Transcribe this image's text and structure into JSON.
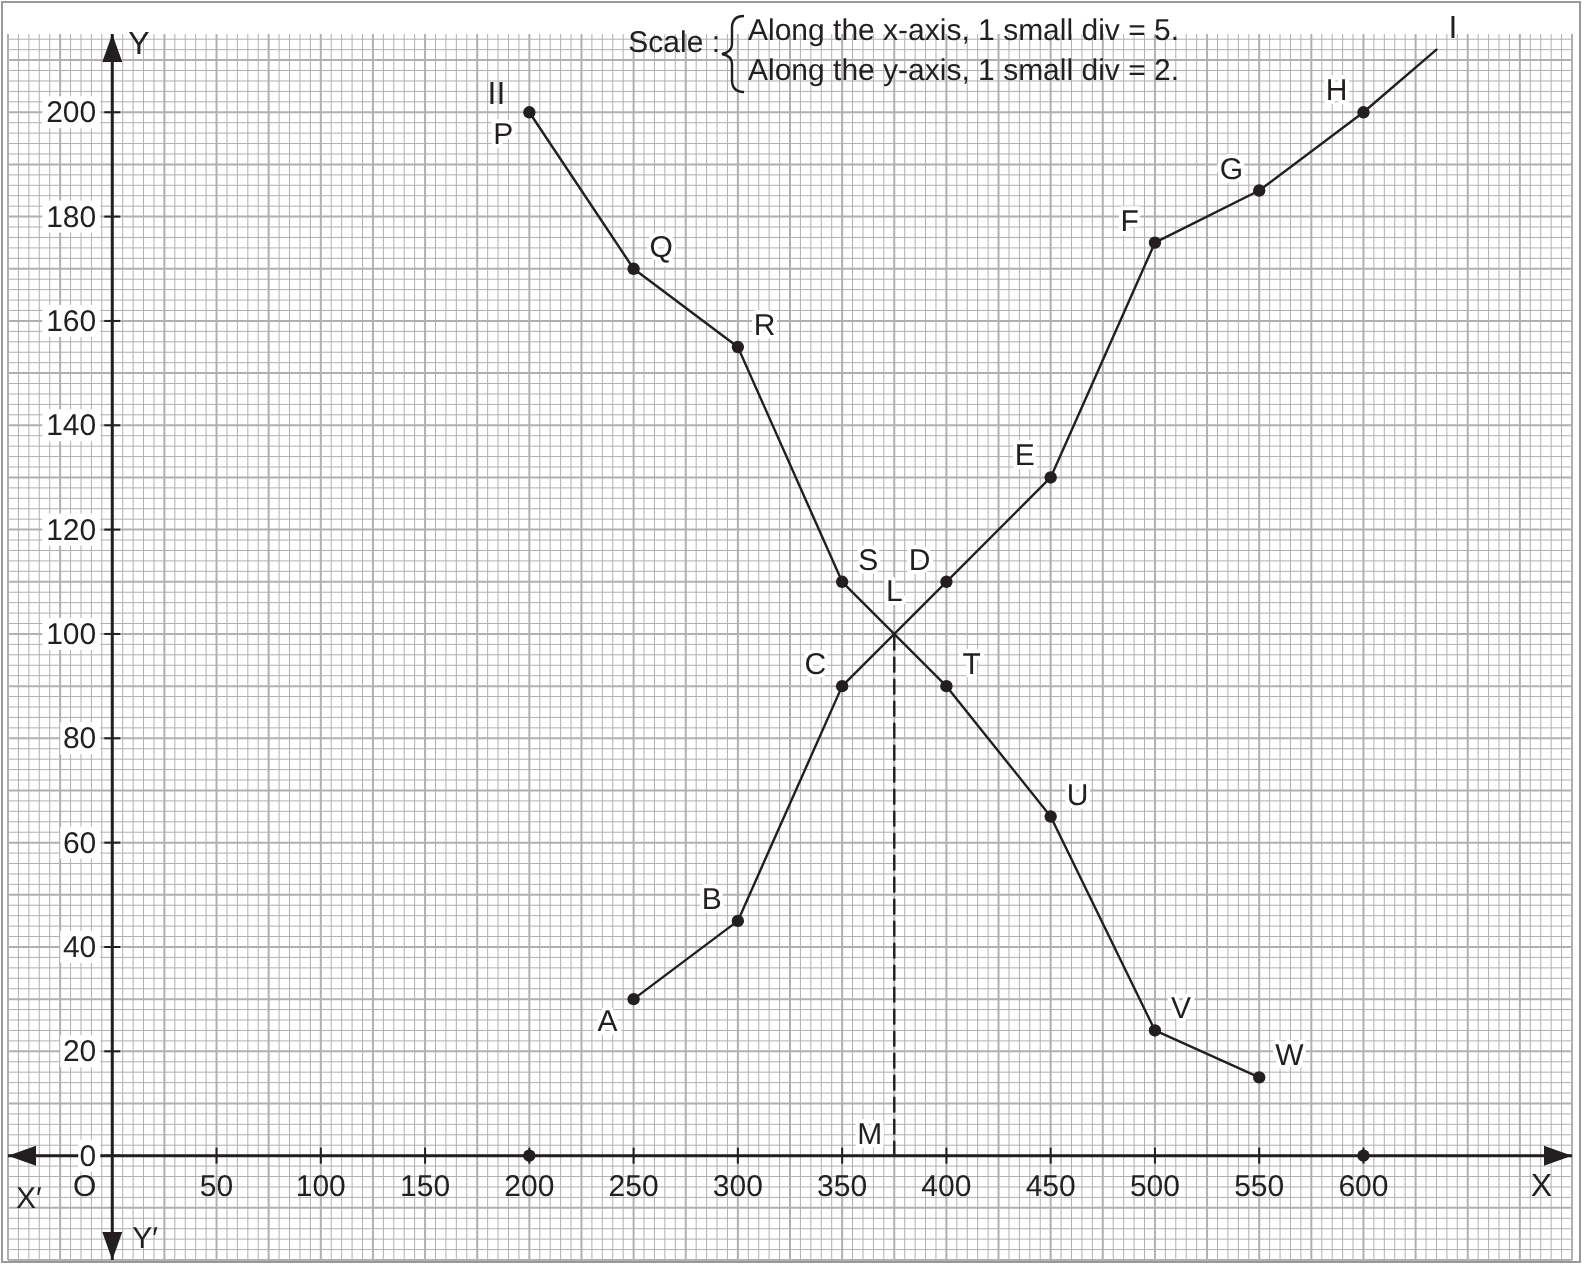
{
  "chart_data": {
    "type": "line",
    "xlabel": "X",
    "ylabel": "Y",
    "xlim": [
      -50,
      700
    ],
    "ylim": [
      -20,
      215
    ],
    "xticks": [
      50,
      100,
      150,
      200,
      250,
      300,
      350,
      400,
      450,
      500,
      550,
      600
    ],
    "yticks": [
      0,
      20,
      40,
      60,
      80,
      100,
      120,
      140,
      160,
      180,
      200
    ],
    "grid": true,
    "marker": "circle",
    "line_style": "solid",
    "series": [
      {
        "name": "I",
        "color": "#231f20",
        "x": [
          250,
          300,
          350,
          400,
          450,
          500,
          550,
          600,
          635
        ],
        "values": [
          30,
          45,
          90,
          110,
          130,
          175,
          185,
          200,
          212
        ]
      },
      {
        "name": "II",
        "color": "#231f20",
        "x": [
          200,
          250,
          300,
          350,
          400,
          450,
          500,
          550
        ],
        "values": [
          200,
          170,
          155,
          110,
          90,
          65,
          24,
          15
        ]
      },
      {
        "type": "line",
        "color": "#231f20",
        "line_style": "dashed",
        "marker": "none",
        "x": [
          375,
          375
        ],
        "values": [
          0,
          101
        ]
      },
      {
        "type": "scatter",
        "color": "#231f20",
        "x": [
          200,
          600
        ],
        "values": [
          0,
          0
        ]
      }
    ],
    "annotations": [
      "Scale :",
      "Along the x-axis, 1 small div = 5.",
      "Along the y-axis, 1 small div = 2.",
      {
        "text": "A",
        "x": 250,
        "y": 30
      },
      {
        "text": "B",
        "x": 300,
        "y": 45
      },
      {
        "text": "C",
        "x": 350,
        "y": 90
      },
      {
        "text": "D",
        "x": 400,
        "y": 110
      },
      {
        "text": "E",
        "x": 450,
        "y": 130
      },
      {
        "text": "F",
        "x": 500,
        "y": 175
      },
      {
        "text": "G",
        "x": 550,
        "y": 185
      },
      {
        "text": "H",
        "x": 600,
        "y": 200
      },
      {
        "text": "P",
        "x": 200,
        "y": 200
      },
      {
        "text": "Q",
        "x": 250,
        "y": 170
      },
      {
        "text": "R",
        "x": 300,
        "y": 155
      },
      {
        "text": "S",
        "x": 350,
        "y": 110
      },
      {
        "text": "T",
        "x": 400,
        "y": 90
      },
      {
        "text": "U",
        "x": 450,
        "y": 65
      },
      {
        "text": "V",
        "x": 500,
        "y": 24
      },
      {
        "text": "W",
        "x": 550,
        "y": 15
      },
      {
        "text": "L",
        "x": 375,
        "y": 101
      },
      {
        "text": "M",
        "x": 375,
        "y": 0
      },
      "O",
      "X′",
      "Y′"
    ]
  }
}
